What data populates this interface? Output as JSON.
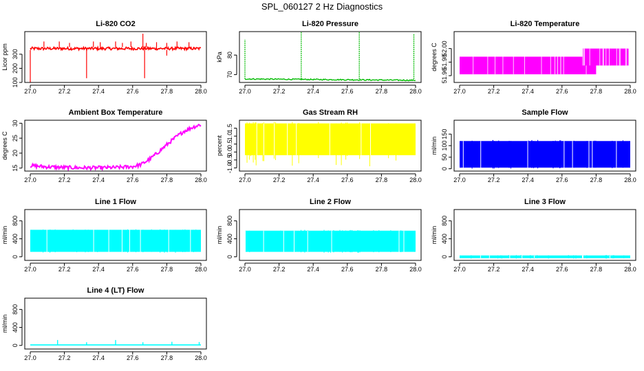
{
  "page": {
    "title": "SPL_060127  2 Hz Diagnostics"
  },
  "colors": {
    "red": "#ff0000",
    "green": "#00bb00",
    "magenta": "#ff00ff",
    "yellow": "#ffff00",
    "blue": "#0000ff",
    "cyan": "#00ffff"
  },
  "chart_data": [
    {
      "id": "co2",
      "type": "line",
      "title": "Li-820 CO2",
      "ylabel": "Licor ppm",
      "xlabel": "",
      "xlim": [
        27.0,
        28.0
      ],
      "ylim": [
        100,
        460
      ],
      "xticks": [
        27.0,
        27.2,
        27.4,
        27.6,
        27.8,
        28.0
      ],
      "xtick_labels": [
        "27.0",
        "27.2",
        "27.4",
        "27.6",
        "27.8",
        "28.0"
      ],
      "yticks": [
        100,
        200,
        300
      ],
      "ytick_labels": [
        "100",
        "200",
        "300"
      ],
      "color": "red",
      "style": "noisy",
      "band": [
        330,
        350
      ],
      "spikes": [
        [
          27.08,
          390
        ],
        [
          27.17,
          390
        ],
        [
          27.23,
          380
        ],
        [
          27.37,
          390
        ],
        [
          27.41,
          385
        ],
        [
          27.5,
          390
        ],
        [
          27.54,
          380
        ],
        [
          27.59,
          390
        ],
        [
          27.68,
          380
        ],
        [
          27.74,
          385
        ],
        [
          27.8,
          380
        ],
        [
          27.86,
          390
        ],
        [
          27.93,
          385
        ]
      ],
      "dips": [
        [
          27.0,
          100
        ],
        [
          27.33,
          130
        ],
        [
          27.67,
          130
        ],
        [
          27.8,
          290
        ]
      ],
      "jumps": [
        [
          27.66,
          445
        ]
      ]
    },
    {
      "id": "pressure",
      "type": "line",
      "title": "Li-820 Pressure",
      "ylabel": "kPa",
      "xlabel": "",
      "xlim": [
        27.0,
        28.0
      ],
      "ylim": [
        66,
        92
      ],
      "xticks": [
        27.0,
        27.2,
        27.4,
        27.6,
        27.8,
        28.0
      ],
      "xtick_labels": [
        "27.0",
        "27.2",
        "27.4",
        "27.6",
        "27.8",
        "28.0"
      ],
      "yticks": [
        70,
        80
      ],
      "ytick_labels": [
        "70",
        "80"
      ],
      "color": "green",
      "style": "drift",
      "line_start": 67.8,
      "line_end": 67.1,
      "spikes": [
        [
          27.0,
          88
        ],
        [
          27.33,
          92
        ],
        [
          27.67,
          92
        ],
        [
          27.99,
          91
        ]
      ]
    },
    {
      "id": "licor-temp",
      "type": "line",
      "title": "Li-820 Temperature",
      "ylabel": "degrees C",
      "xlabel": "",
      "xlim": [
        27.0,
        28.0
      ],
      "ylim": [
        51.95,
        52.025
      ],
      "xticks": [
        27.0,
        27.2,
        27.4,
        27.6,
        27.8,
        28.0
      ],
      "xtick_labels": [
        "27.0",
        "27.2",
        "27.4",
        "27.6",
        "27.8",
        "28.0"
      ],
      "yticks": [
        51.96,
        51.98,
        52.0
      ],
      "ytick_labels": [
        "51.96",
        "51.98",
        "52.00"
      ],
      "color": "magenta",
      "style": "steps",
      "steps": [
        [
          27.0,
          27.8,
          51.962,
          51.988
        ],
        [
          27.72,
          27.99,
          51.975,
          52.0
        ],
        [
          27.99,
          28.0,
          52.0,
          52.02
        ]
      ]
    },
    {
      "id": "box-temp",
      "type": "line",
      "title": "Ambient Box Temperature",
      "ylabel": "degrees C",
      "xlabel": "",
      "xlim": [
        27.0,
        28.0
      ],
      "ylim": [
        14,
        31
      ],
      "xticks": [
        27.0,
        27.2,
        27.4,
        27.6,
        27.8,
        28.0
      ],
      "xtick_labels": [
        "27.0",
        "27.2",
        "27.4",
        "27.6",
        "27.8",
        "28.0"
      ],
      "yticks": [
        15,
        20,
        25,
        30
      ],
      "ytick_labels": [
        "15",
        "20",
        "25",
        "30"
      ],
      "color": "magenta",
      "style": "curve",
      "x": [
        27.0,
        27.1,
        27.2,
        27.3,
        27.4,
        27.5,
        27.6,
        27.65,
        27.7,
        27.75,
        27.8,
        27.85,
        27.9,
        27.95,
        28.0
      ],
      "y": [
        15.8,
        15.4,
        15.2,
        15.1,
        15.1,
        15.2,
        15.5,
        16.2,
        18.0,
        20.3,
        22.8,
        25.2,
        27.3,
        28.6,
        29.6
      ]
    },
    {
      "id": "rh",
      "type": "line",
      "title": "Gas Stream RH",
      "ylabel": "percent",
      "xlabel": "",
      "xlim": [
        27.0,
        28.0
      ],
      "ylim": [
        -1.2,
        2.0
      ],
      "xticks": [
        27.0,
        27.2,
        27.4,
        27.6,
        27.8,
        28.0
      ],
      "xtick_labels": [
        "27.0",
        "27.2",
        "27.4",
        "27.6",
        "27.8",
        "28.0"
      ],
      "yticks": [
        -1.0,
        -0.5,
        0.0,
        0.5,
        1.0,
        1.5
      ],
      "ytick_labels": [
        "-1.0",
        "-0.5",
        "0.0",
        "0.5",
        "1.0",
        "1.5"
      ],
      "color": "yellow",
      "style": "band",
      "band": [
        -0.2,
        1.8
      ],
      "outliers": [
        -0.9,
        1.9
      ]
    },
    {
      "id": "sample-flow",
      "type": "line",
      "title": "Sample Flow",
      "ylabel": "ml/min",
      "xlabel": "",
      "xlim": [
        27.0,
        28.0
      ],
      "ylim": [
        -10,
        210
      ],
      "xticks": [
        27.0,
        27.2,
        27.4,
        27.6,
        27.8,
        28.0
      ],
      "xtick_labels": [
        "27.0",
        "27.2",
        "27.4",
        "27.6",
        "27.8",
        "28.0"
      ],
      "yticks": [
        0,
        50,
        100,
        150
      ],
      "ytick_labels": [
        "0",
        "50",
        "100",
        "150"
      ],
      "color": "blue",
      "style": "band",
      "band": [
        5,
        120
      ],
      "outliers": [
        0,
        125
      ]
    },
    {
      "id": "line1",
      "type": "line",
      "title": "Line 1 Flow",
      "ylabel": "ml/min",
      "xlabel": "",
      "xlim": [
        27.0,
        28.0
      ],
      "ylim": [
        -80,
        1050
      ],
      "xticks": [
        27.0,
        27.2,
        27.4,
        27.6,
        27.8,
        28.0
      ],
      "xtick_labels": [
        "27.0",
        "27.2",
        "27.4",
        "27.6",
        "27.8",
        "28.0"
      ],
      "yticks": [
        0,
        400,
        800
      ],
      "ytick_labels": [
        "0",
        "400",
        "800"
      ],
      "color": "cyan",
      "style": "band",
      "band": [
        110,
        600
      ],
      "outliers": [
        90,
        610
      ]
    },
    {
      "id": "line2",
      "type": "line",
      "title": "Line 2 Flow",
      "ylabel": "ml/min",
      "xlabel": "",
      "xlim": [
        27.0,
        28.0
      ],
      "ylim": [
        -80,
        1050
      ],
      "xticks": [
        27.0,
        27.2,
        27.4,
        27.6,
        27.8,
        28.0
      ],
      "xtick_labels": [
        "27.0",
        "27.2",
        "27.4",
        "27.6",
        "27.8",
        "28.0"
      ],
      "yticks": [
        0,
        400,
        800
      ],
      "ytick_labels": [
        "0",
        "400",
        "800"
      ],
      "color": "cyan",
      "style": "band",
      "band": [
        110,
        580
      ],
      "outliers": [
        90,
        600
      ]
    },
    {
      "id": "line3",
      "type": "line",
      "title": "Line 3 Flow",
      "ylabel": "ml/min",
      "xlabel": "",
      "xlim": [
        27.0,
        28.0
      ],
      "ylim": [
        -80,
        1050
      ],
      "xticks": [
        27.0,
        27.2,
        27.4,
        27.6,
        27.8,
        28.0
      ],
      "xtick_labels": [
        "27.0",
        "27.2",
        "27.4",
        "27.6",
        "27.8",
        "28.0"
      ],
      "yticks": [
        0,
        400,
        800
      ],
      "ytick_labels": [
        "0",
        "400",
        "800"
      ],
      "color": "cyan",
      "style": "band",
      "band": [
        -30,
        30
      ],
      "outliers": [
        -40,
        40
      ]
    },
    {
      "id": "line4",
      "type": "line",
      "title": "Line 4 (LT) Flow",
      "ylabel": "ml/min",
      "xlabel": "",
      "xlim": [
        27.0,
        28.0
      ],
      "ylim": [
        -80,
        1050
      ],
      "xticks": [
        27.0,
        27.2,
        27.4,
        27.6,
        27.8,
        28.0
      ],
      "xtick_labels": [
        "27.0",
        "27.2",
        "27.4",
        "27.6",
        "27.8",
        "28.0"
      ],
      "yticks": [
        0,
        400,
        800
      ],
      "ytick_labels": [
        "0",
        "400",
        "800"
      ],
      "color": "cyan",
      "style": "spiky",
      "baseline": 10,
      "spikes": [
        [
          27.16,
          120
        ],
        [
          27.33,
          70
        ],
        [
          27.5,
          120
        ],
        [
          27.66,
          70
        ],
        [
          27.83,
          80
        ],
        [
          27.99,
          75
        ]
      ]
    }
  ]
}
